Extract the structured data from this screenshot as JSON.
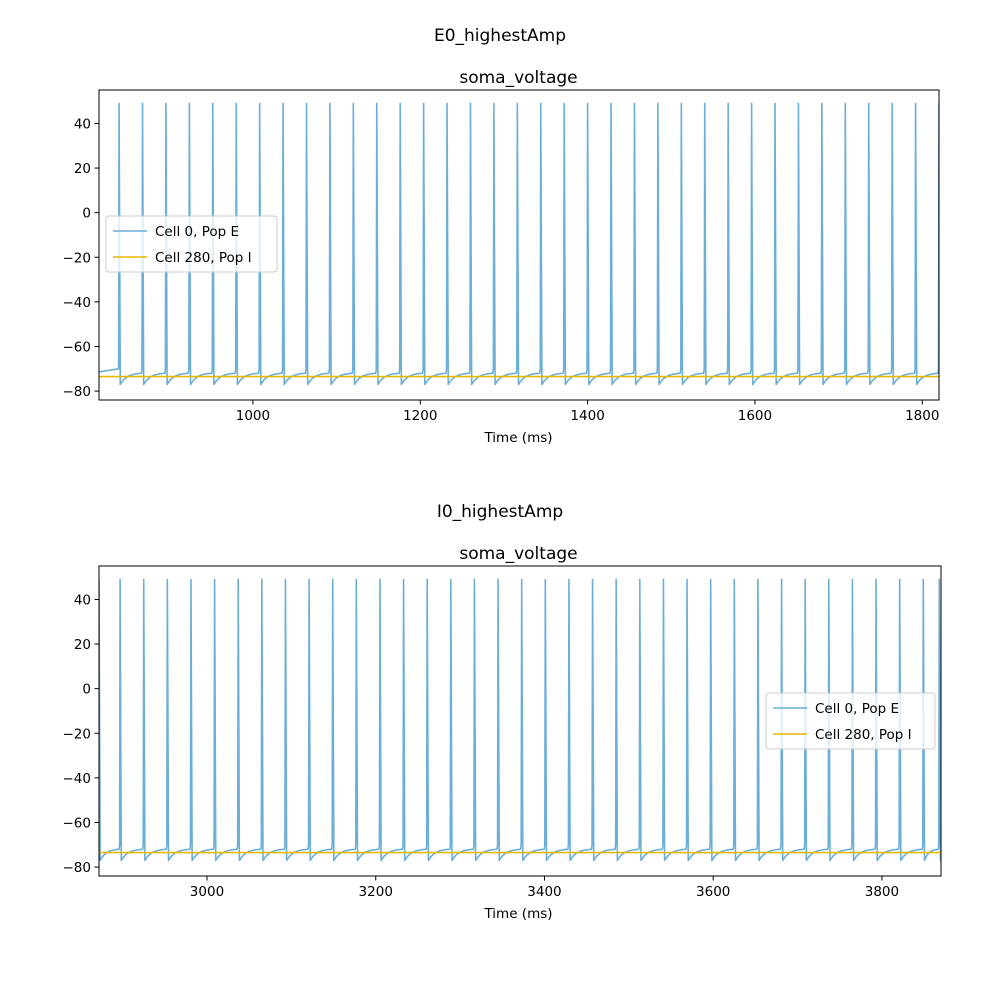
{
  "figure": {
    "background": "#ffffff"
  },
  "chart_data": [
    {
      "type": "line",
      "suptitle": "E0_highestAmp",
      "title": "soma_voltage",
      "xlabel": "Time (ms)",
      "ylabel": "",
      "xlim": [
        816,
        1820
      ],
      "ylim": [
        -84,
        55
      ],
      "xticks": [
        1000,
        1200,
        1400,
        1600,
        1800
      ],
      "xtick_labels": [
        "1000",
        "1200",
        "1400",
        "1600",
        "1800"
      ],
      "yticks": [
        40,
        20,
        0,
        -20,
        -40,
        -60,
        -80
      ],
      "ytick_labels": [
        "40",
        "20",
        "0",
        "−20",
        "−40",
        "−60",
        "−80"
      ],
      "grid": false,
      "legend_placement": "center-left",
      "series": [
        {
          "name": "Cell 0, Pop E",
          "color": "#6baed6",
          "kind": "spike_train",
          "spike_times": [
            840,
            868,
            896,
            924,
            952,
            980,
            1008,
            1036,
            1064,
            1092,
            1120,
            1148,
            1176,
            1204,
            1232,
            1260,
            1288,
            1316,
            1344,
            1372,
            1400,
            1428,
            1456,
            1484,
            1512,
            1540,
            1568,
            1596,
            1624,
            1652,
            1680,
            1708,
            1736,
            1764,
            1792,
            1820
          ],
          "peak": 49,
          "trough": -77,
          "baseline": -72
        },
        {
          "name": "Cell 280, Pop I",
          "color": "#e6b800",
          "kind": "constant",
          "value": -73.5
        }
      ]
    },
    {
      "type": "line",
      "suptitle": "I0_highestAmp",
      "title": "soma_voltage",
      "xlabel": "Time (ms)",
      "ylabel": "",
      "xlim": [
        2872,
        3870
      ],
      "ylim": [
        -84,
        55
      ],
      "xticks": [
        3000,
        3200,
        3400,
        3600,
        3800
      ],
      "xtick_labels": [
        "3000",
        "3200",
        "3400",
        "3600",
        "3800"
      ],
      "yticks": [
        40,
        20,
        0,
        -20,
        -40,
        -60,
        -80
      ],
      "ytick_labels": [
        "40",
        "20",
        "0",
        "−20",
        "−40",
        "−60",
        "−80"
      ],
      "grid": false,
      "legend_placement": "center-right",
      "series": [
        {
          "name": "Cell 0, Pop E",
          "color": "#6baed6",
          "kind": "spike_train",
          "spike_times": [
            2872,
            2897,
            2925,
            2953,
            2981,
            3009,
            3037,
            3065,
            3093,
            3121,
            3149,
            3177,
            3205,
            3233,
            3261,
            3289,
            3317,
            3345,
            3373,
            3401,
            3429,
            3457,
            3485,
            3513,
            3541,
            3569,
            3597,
            3625,
            3653,
            3681,
            3709,
            3737,
            3765,
            3793,
            3821,
            3849,
            3868
          ],
          "peak": 49,
          "trough": -77,
          "baseline": -72
        },
        {
          "name": "Cell 280, Pop I",
          "color": "#e6b800",
          "kind": "constant",
          "value": -73.5
        }
      ]
    }
  ]
}
